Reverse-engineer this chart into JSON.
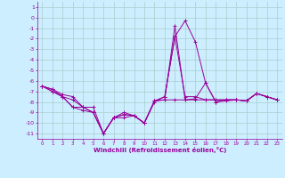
{
  "xlabel": "Windchill (Refroidissement éolien,°C)",
  "background_color": "#cceeff",
  "grid_color": "#aacccc",
  "line_color": "#990099",
  "x": [
    0,
    1,
    2,
    3,
    4,
    5,
    6,
    7,
    8,
    9,
    10,
    11,
    12,
    13,
    14,
    15,
    16,
    17,
    18,
    19,
    20,
    21,
    22,
    23
  ],
  "series": [
    [
      -6.5,
      -6.8,
      -7.3,
      -7.5,
      -8.5,
      -9.0,
      -11.0,
      -9.5,
      -9.2,
      -9.3,
      -10.0,
      -7.9,
      -7.8,
      -0.8,
      -7.8,
      -7.7,
      -6.2,
      -8.0,
      -7.8,
      -7.8,
      -7.9,
      -7.2,
      -7.5,
      -7.8
    ],
    [
      -6.5,
      -6.8,
      -7.5,
      -8.5,
      -8.5,
      -8.5,
      -11.0,
      -9.5,
      -9.2,
      -9.3,
      -10.0,
      -7.9,
      -7.5,
      -1.8,
      -7.5,
      -7.5,
      -7.8,
      -7.8,
      -7.8,
      -7.8,
      -7.9,
      -7.2,
      -7.5,
      -7.8
    ],
    [
      -6.5,
      -7.0,
      -7.5,
      -8.5,
      -8.8,
      -9.0,
      -11.0,
      -9.5,
      -9.0,
      -9.3,
      -10.0,
      -8.0,
      -7.5,
      -1.8,
      -0.3,
      -2.3,
      -6.2,
      -8.0,
      -7.9,
      -7.8,
      -7.9,
      -7.2,
      -7.5,
      -7.8
    ],
    [
      -6.5,
      -7.0,
      -7.5,
      -7.8,
      -8.5,
      -9.0,
      -11.0,
      -9.5,
      -9.5,
      -9.3,
      -10.0,
      -7.9,
      -7.8,
      -7.8,
      -7.8,
      -7.8,
      -7.8,
      -7.8,
      -7.8,
      -7.8,
      -7.9,
      -7.2,
      -7.5,
      -7.8
    ]
  ],
  "ylim": [
    -11.5,
    1.5
  ],
  "xlim": [
    -0.5,
    23.5
  ],
  "yticks": [
    1,
    0,
    -1,
    -2,
    -3,
    -4,
    -5,
    -6,
    -7,
    -8,
    -9,
    -10,
    -11
  ],
  "xticks": [
    0,
    1,
    2,
    3,
    4,
    5,
    6,
    7,
    8,
    9,
    10,
    11,
    12,
    13,
    14,
    15,
    16,
    17,
    18,
    19,
    20,
    21,
    22,
    23
  ]
}
